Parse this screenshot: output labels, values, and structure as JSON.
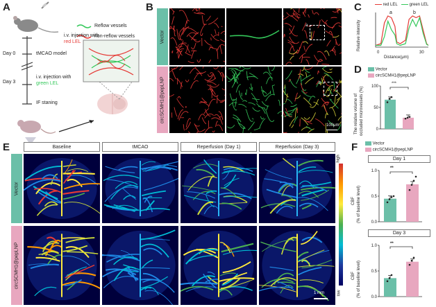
{
  "panels": {
    "A": {
      "label": "A",
      "step1_line1": "i.v. injection with",
      "step1_line2": "red LEL",
      "day0": "Day 0",
      "model": "tMCAO model",
      "day3": "Day 3",
      "step2_line1": "i.v. injection with",
      "step2_line2": "green LEL",
      "staining": "IF staning",
      "legend_reflow": "Reflow vessels",
      "legend_nonreflow": "non-reflow vessels"
    },
    "B": {
      "label": "B",
      "row_vector": "Vector",
      "row_treat": "circSCMH1@pepLNP",
      "inset_a": "a",
      "inset_b": "b",
      "scale": "100μm"
    },
    "C": {
      "label": "C",
      "legend_red": "red LEL",
      "legend_green": "green LEL",
      "peak_a": "a",
      "peak_b": "b",
      "ylabel_line1": "Relative  intensity",
      "xlabel": "Distance(μm)",
      "xtick_0": "0",
      "xtick_30": "30"
    },
    "D": {
      "label": "D",
      "legend_vector": "Vector",
      "legend_treat": "circSCMH1@pepLNP",
      "ylabel_line1": "The relative volume of",
      "ylabel_line2": "occluded microvessels (%)",
      "y0": "0",
      "y50": "50",
      "y100": "100",
      "sig": "***"
    },
    "E": {
      "label": "E",
      "cols": [
        "Baseline",
        "tMCAO",
        "Reperfusion (Day 1)",
        "Reperfusion (Day 3)"
      ],
      "row_vector": "Vector",
      "row_treat": "circSCMH1@pepLNP",
      "scale_high": "high",
      "scale_low": "low",
      "scalebar": "1 mm"
    },
    "F": {
      "label": "F",
      "legend_vector": "Vector",
      "legend_treat": "circSCMH1@pepLNP",
      "day1": "Day 1",
      "day3": "Day 3",
      "ylabel_line1": "CBF",
      "ylabel_line2": "(% of baseline level)",
      "y00": "0.0",
      "y05": "0.5",
      "y10": "1.0",
      "sig1": "**",
      "sig3": "**"
    }
  },
  "colors": {
    "vector": "#6bbfa8",
    "treat": "#e8a7bf",
    "red_vessel": "#e53935",
    "green_vessel": "#34c85a"
  },
  "chart_data": [
    {
      "type": "line",
      "panel": "C",
      "xlabel": "Distance(μm)",
      "ylabel": "Relative  intensity",
      "xlim": [
        0,
        30
      ],
      "series": [
        {
          "name": "red LEL",
          "x": [
            0,
            3,
            5,
            7,
            9,
            11,
            12,
            14,
            17,
            19,
            21,
            23,
            25,
            27,
            29,
            30
          ],
          "y": [
            0.05,
            0.1,
            0.7,
            0.9,
            0.85,
            0.6,
            0.15,
            0.1,
            0.2,
            0.8,
            0.9,
            0.85,
            0.9,
            0.5,
            0.1,
            0.05
          ]
        },
        {
          "name": "green LEL",
          "x": [
            0,
            3,
            5,
            7,
            9,
            11,
            12,
            14,
            17,
            19,
            21,
            23,
            25,
            27,
            29,
            30
          ],
          "y": [
            0.05,
            0.05,
            0.3,
            0.75,
            0.5,
            0.35,
            0.1,
            0.05,
            0.1,
            0.55,
            0.8,
            0.6,
            0.85,
            0.4,
            0.08,
            0.05
          ]
        }
      ]
    },
    {
      "type": "bar",
      "panel": "D",
      "categories": [
        "Vector",
        "circSCMH1@pepLNP"
      ],
      "values": [
        68,
        26
      ],
      "points": [
        [
          62,
          70,
          74
        ],
        [
          24,
          26,
          28
        ]
      ],
      "ylabel": "The relative volume of occluded microvessels (%)",
      "ylim": [
        0,
        100
      ]
    },
    {
      "type": "bar",
      "panel": "F",
      "title": "Day 1",
      "categories": [
        "Vector",
        "circSCMH1@pepLNP"
      ],
      "values": [
        0.45,
        0.73
      ],
      "points": [
        [
          0.38,
          0.44,
          0.48,
          0.5
        ],
        [
          0.62,
          0.72,
          0.8,
          0.88
        ]
      ],
      "ylabel": "CBF (% of baseline level)",
      "ylim": [
        0,
        1.0
      ]
    },
    {
      "type": "bar",
      "panel": "F",
      "title": "Day 3",
      "categories": [
        "Vector",
        "circSCMH1@pepLNP"
      ],
      "values": [
        0.36,
        0.68
      ],
      "points": [
        [
          0.3,
          0.36,
          0.42
        ],
        [
          0.62,
          0.7,
          0.76
        ]
      ],
      "ylabel": "CBF (% of baseline level)",
      "ylim": [
        0,
        1.0
      ]
    }
  ]
}
